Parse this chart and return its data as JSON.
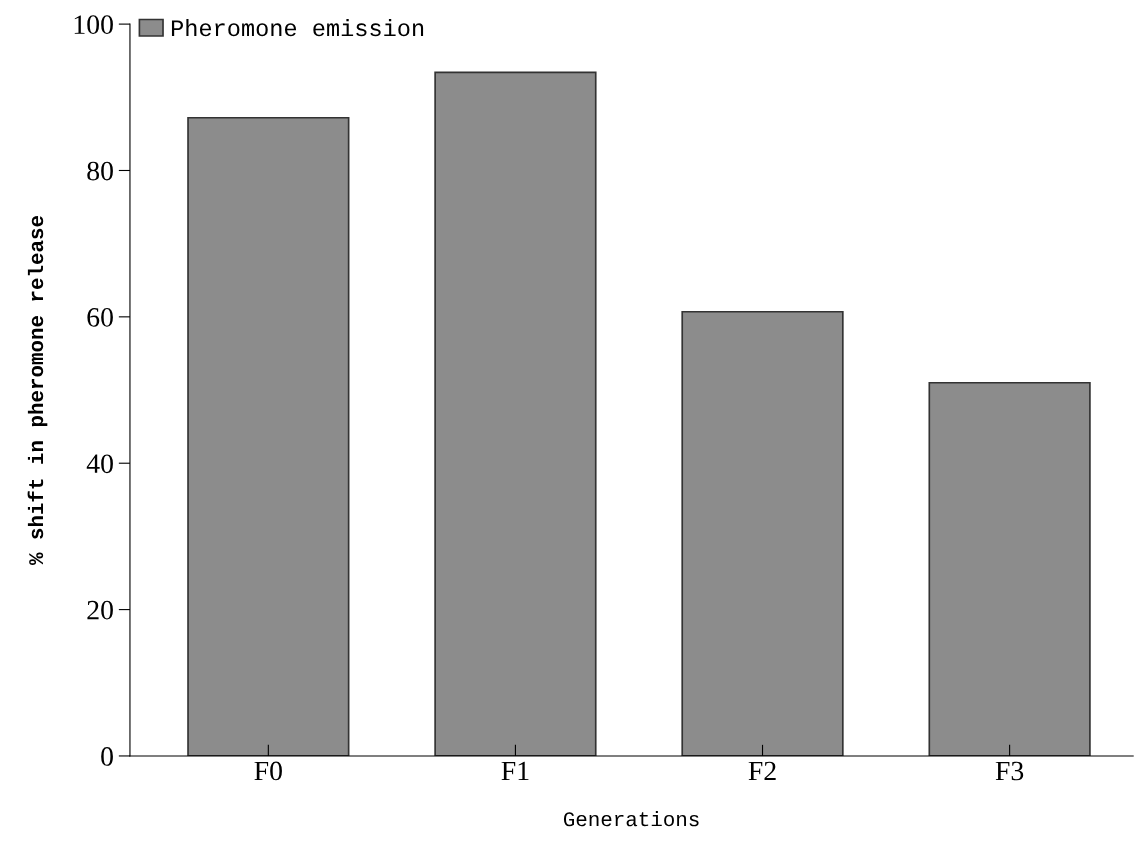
{
  "chart_data": {
    "type": "bar",
    "xlabel": "Generations",
    "ylabel": "% shift in pheromone release",
    "categories": [
      "F0",
      "F1",
      "F2",
      "F3"
    ],
    "series": [
      {
        "name": "Pheromone emission",
        "color": "#8c8c8c",
        "values": [
          87.2,
          93.4,
          60.7,
          51.0
        ]
      }
    ],
    "ylim": [
      0,
      100
    ],
    "yticks": [
      0,
      20,
      40,
      60,
      80,
      100
    ],
    "grid": false,
    "legend": "top left"
  }
}
